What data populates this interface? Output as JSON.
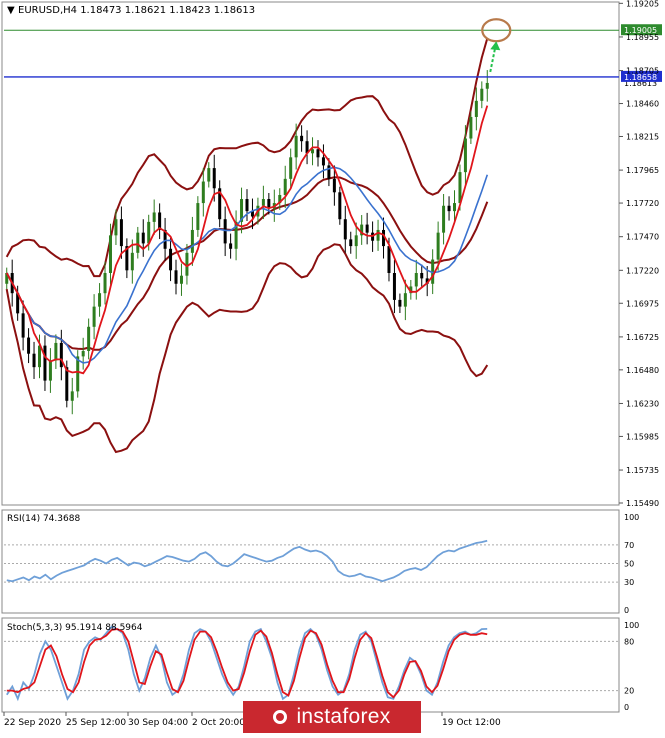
{
  "header": {
    "symbol_line": "EURUSD,H4  1.18473  1.18621  1.18423  1.18613"
  },
  "colors": {
    "bull_candle": "#2e7d1f",
    "bear_candle": "#000000",
    "ma_red": "#e0151b",
    "ma_blue": "#3a72cf",
    "bollinger": "#8b1010",
    "target_line": "#2e8b2e",
    "price_line": "#1f2fcf",
    "tag_target": "#2e8b2e",
    "tag_price": "#1f2fcf",
    "circle": "#b87a4b",
    "arrow": "#22c04a",
    "rsi_line": "#6fa0d8",
    "stoch_main": "#6fa0d8",
    "stoch_signal": "#e0151b",
    "watermark_bg": "#c9282f"
  },
  "chart_data": [
    {
      "type": "candlestick",
      "title": "EURUSD,H4",
      "ylim": [
        1.1549,
        1.192
      ],
      "y_ticks": [
        "1.19205",
        "1.18955",
        "1.18705",
        "1.18460",
        "1.18215",
        "1.17965",
        "1.17720",
        "1.17470",
        "1.17220",
        "1.16975",
        "1.16725",
        "1.16480",
        "1.16230",
        "1.15985",
        "1.15735",
        "1.15490"
      ],
      "price_labels": [
        "1.19005",
        "1.18658",
        "1.18613"
      ],
      "target_level": 1.19005,
      "current_level": 1.18658,
      "close_level": 1.18613,
      "x_labels": [
        "22 Sep 2020",
        "25 Sep 12:00",
        "30 Sep 04:00",
        "2 Oct 20:00",
        "",
        "",
        "",
        "19 Oct 12:00"
      ],
      "closes": [
        1.172,
        1.1705,
        1.169,
        1.1672,
        1.166,
        1.165,
        1.1666,
        1.164,
        1.1655,
        1.1668,
        1.165,
        1.1625,
        1.1632,
        1.1658,
        1.1662,
        1.168,
        1.1695,
        1.1705,
        1.172,
        1.1748,
        1.176,
        1.174,
        1.1722,
        1.1735,
        1.175,
        1.1742,
        1.1758,
        1.1765,
        1.1752,
        1.1738,
        1.1722,
        1.1712,
        1.1718,
        1.1735,
        1.1752,
        1.1772,
        1.1788,
        1.1798,
        1.1783,
        1.176,
        1.1742,
        1.1738,
        1.1758,
        1.1775,
        1.1766,
        1.1762,
        1.177,
        1.1775,
        1.1768,
        1.1772,
        1.1778,
        1.179,
        1.1806,
        1.1822,
        1.1818,
        1.1809,
        1.1812,
        1.1806,
        1.18,
        1.179,
        1.178,
        1.176,
        1.1745,
        1.174,
        1.1748,
        1.1756,
        1.175,
        1.1744,
        1.1752,
        1.174,
        1.172,
        1.17,
        1.1695,
        1.1705,
        1.171,
        1.172,
        1.1716,
        1.1712,
        1.173,
        1.175,
        1.177,
        1.1766,
        1.1772,
        1.1795,
        1.182,
        1.1836,
        1.1848,
        1.1857,
        1.18613
      ],
      "indicators": [
        "Moving Average (red)",
        "Moving Average (blue)",
        "Bollinger Bands"
      ]
    },
    {
      "type": "line",
      "title": "RSI(14) 74.3688",
      "ylim": [
        0,
        100
      ],
      "y_ticks": [
        "100",
        "70",
        "50",
        "30",
        "0"
      ],
      "levels": [
        70,
        50,
        30
      ],
      "series": [
        {
          "name": "RSI(14)",
          "values": [
            32,
            31,
            33,
            35,
            32,
            36,
            34,
            38,
            33,
            37,
            40,
            42,
            44,
            46,
            48,
            52,
            55,
            53,
            50,
            54,
            56,
            52,
            48,
            51,
            50,
            47,
            49,
            52,
            55,
            58,
            57,
            55,
            53,
            52,
            55,
            60,
            62,
            58,
            52,
            48,
            47,
            50,
            55,
            60,
            58,
            56,
            54,
            52,
            53,
            56,
            58,
            62,
            66,
            68,
            65,
            63,
            64,
            62,
            58,
            52,
            42,
            38,
            36,
            37,
            39,
            36,
            35,
            33,
            31,
            33,
            35,
            38,
            42,
            44,
            45,
            43,
            46,
            52,
            58,
            62,
            64,
            63,
            66,
            68,
            70,
            72,
            73,
            74.4
          ]
        }
      ]
    },
    {
      "type": "line",
      "title": "Stoch(5,3,3) 95.1914 88.5964",
      "ylim": [
        0,
        100
      ],
      "y_ticks": [
        "100",
        "80",
        "20",
        "0"
      ],
      "levels": [
        80,
        20
      ],
      "series": [
        {
          "name": "Stoch main",
          "values": [
            15,
            25,
            10,
            30,
            22,
            40,
            65,
            80,
            70,
            50,
            30,
            10,
            20,
            40,
            70,
            80,
            85,
            82,
            90,
            98,
            95,
            90,
            70,
            40,
            20,
            35,
            60,
            75,
            60,
            30,
            15,
            20,
            40,
            70,
            90,
            95,
            92,
            80,
            60,
            40,
            25,
            15,
            25,
            50,
            80,
            92,
            95,
            80,
            60,
            30,
            10,
            15,
            40,
            70,
            90,
            95,
            88,
            70,
            45,
            25,
            15,
            20,
            40,
            70,
            88,
            92,
            80,
            55,
            30,
            12,
            10,
            25,
            45,
            60,
            55,
            40,
            20,
            15,
            30,
            55,
            75,
            85,
            90,
            92,
            88,
            90,
            95,
            95.2
          ]
        },
        {
          "name": "Stoch signal",
          "values": [
            20,
            20,
            18,
            22,
            24,
            30,
            50,
            70,
            75,
            62,
            40,
            22,
            18,
            30,
            55,
            75,
            82,
            83,
            87,
            94,
            95,
            92,
            80,
            55,
            30,
            28,
            50,
            68,
            64,
            42,
            22,
            18,
            32,
            58,
            82,
            92,
            92,
            85,
            68,
            48,
            30,
            20,
            22,
            42,
            68,
            88,
            93,
            86,
            66,
            40,
            18,
            14,
            32,
            60,
            84,
            93,
            90,
            76,
            52,
            32,
            18,
            18,
            34,
            60,
            82,
            90,
            84,
            62,
            38,
            18,
            12,
            20,
            40,
            55,
            56,
            44,
            25,
            18,
            26,
            46,
            68,
            82,
            88,
            90,
            88,
            88,
            90,
            88.6
          ]
        }
      ]
    }
  ],
  "brand": {
    "text": "instaforex"
  }
}
